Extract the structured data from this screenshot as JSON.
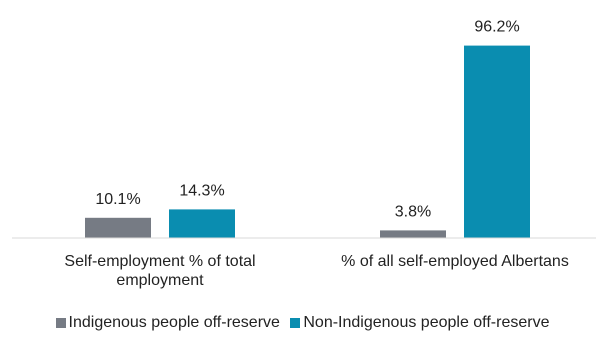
{
  "chart_data": {
    "type": "bar",
    "categories": [
      [
        "Self-employment % of total",
        "employment"
      ],
      [
        "% of all self-employed Albertans"
      ]
    ],
    "series": [
      {
        "name": "Indigenous people off-reserve",
        "color": "#767b84",
        "values": [
          10.1,
          3.8
        ],
        "labels": [
          "10.1%",
          "3.8%"
        ]
      },
      {
        "name": "Non-Indigenous people off-reserve",
        "color": "#0a8db0",
        "values": [
          14.3,
          96.2
        ],
        "labels": [
          "14.3%",
          "96.2%"
        ]
      }
    ],
    "ylim": [
      0,
      100
    ],
    "grid": false,
    "legend": "bottom",
    "axis_color": "#d9d9d9"
  }
}
